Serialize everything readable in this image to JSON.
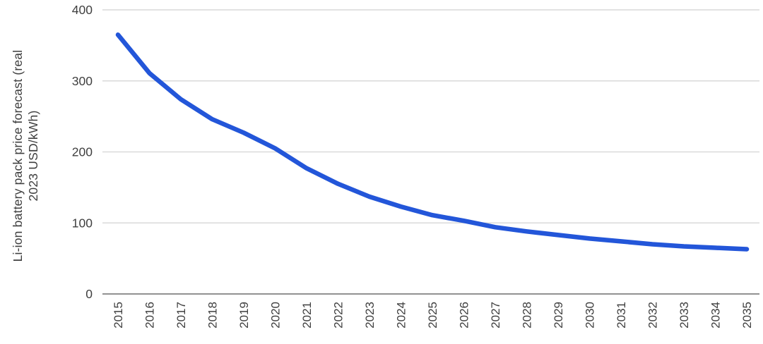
{
  "chart_data": {
    "type": "line",
    "title": "",
    "xlabel": "",
    "ylabel": "Li-ion battery pack price forecast (real 2023 USD/kWh)",
    "ylabel_lines": [
      "Li-ion battery pack price forecast (real",
      "2023 USD/kWh)"
    ],
    "categories": [
      2015,
      2016,
      2017,
      2018,
      2019,
      2020,
      2021,
      2022,
      2023,
      2024,
      2025,
      2026,
      2027,
      2028,
      2029,
      2030,
      2031,
      2032,
      2033,
      2034,
      2035
    ],
    "series": [
      {
        "name": "Li-ion battery pack price forecast",
        "values": [
          365,
          311,
          274,
          246,
          227,
          205,
          177,
          155,
          137,
          123,
          111,
          103,
          94,
          88,
          83,
          78,
          74,
          70,
          67,
          65,
          63
        ]
      }
    ],
    "ylim": [
      0,
      400
    ],
    "yticks": [
      0,
      100,
      200,
      300,
      400
    ],
    "grid": "horizontal",
    "legend_position": "none",
    "colors": {
      "line": "#2356d9",
      "gridline": "#d9d9d9",
      "zero_axis": "#919191",
      "tick_text": "#3f3f3f",
      "background": "#ffffff"
    }
  }
}
